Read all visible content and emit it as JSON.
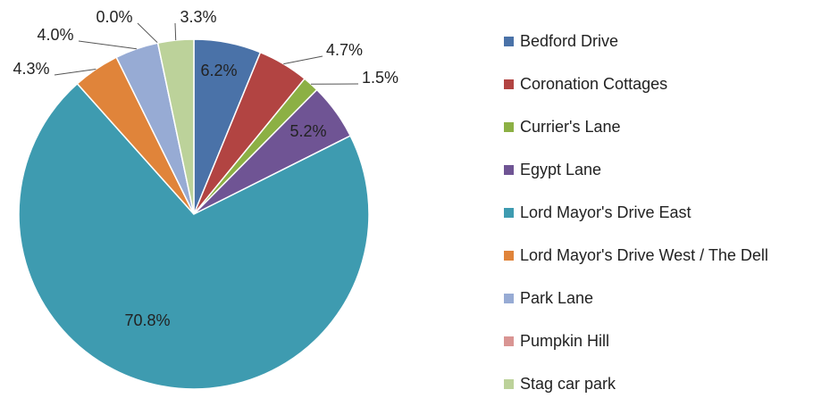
{
  "chart_data": {
    "type": "pie",
    "categories": [
      "Bedford Drive",
      "Coronation Cottages",
      "Currier's Lane",
      "Egypt Lane",
      "Lord Mayor's Drive East",
      "Lord Mayor's Drive West / The Dell",
      "Park Lane",
      "Pumpkin Hill",
      "Stag car park"
    ],
    "values": [
      6.2,
      4.7,
      1.5,
      5.2,
      70.8,
      4.3,
      4.0,
      0.0,
      3.3
    ],
    "value_labels": [
      "6.2%",
      "4.7%",
      "1.5%",
      "5.2%",
      "70.8%",
      "4.3%",
      "4.0%",
      "0.0%",
      "3.3%"
    ],
    "colors": [
      "#4a72a8",
      "#b24442",
      "#8cb044",
      "#6f5494",
      "#3e9bb0",
      "#e0843a",
      "#97abd4",
      "#d99593",
      "#bcd29a"
    ],
    "legend": "right"
  }
}
